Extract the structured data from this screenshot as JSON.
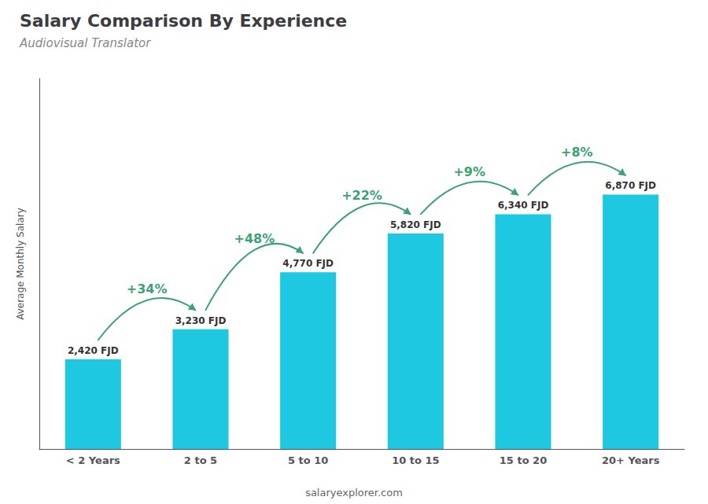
{
  "chart_data": {
    "type": "bar",
    "title": "Salary Comparison By Experience",
    "subtitle": "Audiovisual Translator",
    "ylabel": "Average Monthly Salary",
    "categories": [
      "< 2 Years",
      "2 to 5",
      "5 to 10",
      "10 to 15",
      "15 to 20",
      "20+ Years"
    ],
    "values": [
      2420,
      3230,
      4770,
      5820,
      6340,
      6870
    ],
    "value_labels": [
      "2,420 FJD",
      "3,230 FJD",
      "4,770 FJD",
      "5,820 FJD",
      "6,340 FJD",
      "6,870 FJD"
    ],
    "data_labels": true,
    "color": "#1ec8e0",
    "ylim": [
      0,
      10000
    ],
    "tick_labels": "x",
    "grid": false,
    "annotations": [
      {
        "text": "+34%",
        "from": "< 2 Years",
        "to": "2 to 5"
      },
      {
        "text": "+48%",
        "from": "2 to 5",
        "to": "5 to 10"
      },
      {
        "text": "+22%",
        "from": "5 to 10",
        "to": "10 to 15"
      },
      {
        "text": "+9%",
        "from": "10 to 15",
        "to": "15 to 20"
      },
      {
        "text": "+8%",
        "from": "15 to 20",
        "to": "20+ Years"
      },
      {
        "text": "salaryexplorer.com"
      }
    ]
  }
}
